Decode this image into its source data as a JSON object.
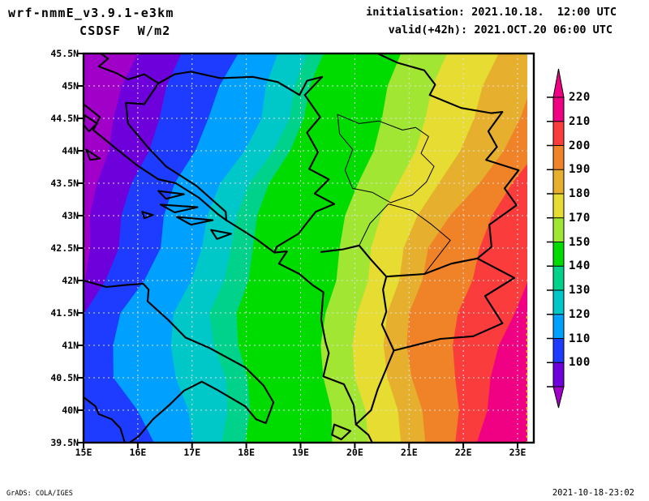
{
  "header": {
    "model_title": "wrf-nmmE_v3.9.1-e3km",
    "field_title": "CSDSF  W/m2",
    "init_line": "initialisation: 2021.10.18.  12:00 UTC",
    "valid_line": "valid(+42h): 2021.OCT.20 06:00 UTC"
  },
  "footer": {
    "grads_credit": "GrADS: COLA/IGES",
    "timestamp": "2021-10-18-23:02"
  },
  "axes": {
    "lat_tick_labels": [
      "45.5N",
      "45N",
      "44.5N",
      "44N",
      "43.5N",
      "43N",
      "42.5N",
      "42N",
      "41.5N",
      "41N",
      "40.5N",
      "40N",
      "39.5N"
    ],
    "lat_tick_values": [
      45.5,
      45,
      44.5,
      44,
      43.5,
      43,
      42.5,
      42,
      41.5,
      41,
      40.5,
      40,
      39.5
    ],
    "lon_tick_labels": [
      "15E",
      "16E",
      "17E",
      "18E",
      "19E",
      "20E",
      "21E",
      "22E",
      "23E"
    ],
    "lon_tick_values": [
      15,
      16,
      17,
      18,
      19,
      20,
      21,
      22,
      23
    ]
  },
  "colorbar": {
    "tick_labels_top_to_bottom": [
      "220",
      "210",
      "200",
      "190",
      "180",
      "170",
      "150",
      "140",
      "130",
      "120",
      "110",
      "100"
    ],
    "arrow_top_color": "#F00082",
    "arrow_bottom_color": "#A000C8"
  },
  "grid": {
    "color": "#e0e0e0",
    "lat_step": 0.5,
    "lon_step": 1
  },
  "chart_data": {
    "type": "heatmap",
    "title": "CSDSF  W/m2",
    "units": "W/m2",
    "lon_range": [
      15.0,
      23.31
    ],
    "lat_range": [
      39.5,
      45.5
    ],
    "levels": [
      100,
      110,
      120,
      130,
      140,
      150,
      170,
      180,
      190,
      200,
      210,
      220
    ],
    "palette": [
      "#A000C8",
      "#6E00DC",
      "#1E3CFF",
      "#00A0FF",
      "#00C8C8",
      "#00D28C",
      "#00DC00",
      "#A0E632",
      "#E6DC32",
      "#E6AF2D",
      "#F08228",
      "#FA3C3C",
      "#F00082"
    ],
    "palette_regions": [
      "<100",
      "100-110",
      "110-120",
      "120-130",
      "130-140",
      "140-150",
      "150-170",
      "170-180",
      "180-190",
      "190-200",
      "200-210",
      "210-220",
      ">220"
    ],
    "orientation_note": "shaded field increases from NW (<100 W/m2, purple) to SE (>220 W/m2, magenta)",
    "boundary_lats": [
      45.5,
      44.5,
      43.5,
      42.5,
      41.5,
      40.5,
      39.5
    ],
    "boundaries": [
      {
        "level": 100,
        "lons": [
          16.0,
          15.55,
          15.25,
          15.12,
          14.8,
          14.75,
          14.75
        ]
      },
      {
        "level": 110,
        "lons": [
          16.8,
          16.4,
          15.88,
          15.65,
          15.02,
          14.9,
          14.9
        ]
      },
      {
        "level": 120,
        "lons": [
          17.85,
          17.3,
          16.68,
          16.42,
          15.68,
          15.55,
          16.3
        ]
      },
      {
        "level": 130,
        "lons": [
          18.58,
          18.28,
          17.52,
          17.18,
          16.66,
          16.7,
          17.02
        ]
      },
      {
        "level": 140,
        "lons": [
          19.12,
          18.8,
          18.06,
          17.72,
          17.32,
          17.62,
          17.55
        ]
      },
      {
        "level": 150,
        "lons": [
          19.42,
          19.06,
          18.42,
          18.12,
          17.82,
          18.02,
          17.98
        ]
      },
      {
        "level": 170,
        "lons": [
          20.85,
          20.5,
          20.06,
          19.72,
          19.46,
          19.42,
          19.58
        ]
      },
      {
        "level": 180,
        "lons": [
          21.7,
          21.3,
          20.8,
          20.3,
          20.05,
          20.0,
          20.25
        ]
      },
      {
        "level": 190,
        "lons": [
          22.65,
          22.2,
          21.55,
          20.9,
          20.6,
          20.6,
          20.85
        ]
      },
      {
        "level": 200,
        "lons": [
          23.6,
          23.05,
          22.3,
          21.35,
          21.0,
          21.05,
          21.3
        ]
      },
      {
        "level": 210,
        "lons": [
          24.2,
          23.7,
          22.9,
          22.3,
          21.9,
          21.85,
          21.85
        ]
      },
      {
        "level": 220,
        "lons": [
          25.0,
          24.5,
          23.9,
          23.3,
          22.95,
          22.5,
          22.25
        ]
      }
    ],
    "no_data_strip_lon": [
      23.18,
      23.31
    ]
  },
  "map_overlay": {
    "line_color": "#000000",
    "coastlines": [
      [
        [
          15.0,
          44.72
        ],
        [
          15.3,
          44.52
        ],
        [
          15.18,
          44.32
        ],
        [
          15.62,
          44.02
        ],
        [
          15.98,
          43.78
        ],
        [
          16.38,
          43.56
        ],
        [
          16.7,
          43.5
        ],
        [
          17.12,
          43.28
        ],
        [
          17.48,
          43.02
        ],
        [
          17.63,
          42.93
        ],
        [
          17.88,
          42.8
        ],
        [
          18.2,
          42.63
        ],
        [
          18.52,
          42.43
        ],
        [
          18.75,
          42.45
        ],
        [
          18.6,
          42.26
        ],
        [
          18.98,
          42.1
        ],
        [
          19.22,
          41.93
        ],
        [
          19.42,
          41.82
        ],
        [
          19.38,
          41.4
        ],
        [
          19.46,
          41.05
        ],
        [
          19.52,
          40.88
        ],
        [
          19.42,
          40.52
        ],
        [
          19.8,
          40.4
        ],
        [
          19.98,
          40.08
        ],
        [
          20.02,
          39.78
        ],
        [
          20.25,
          39.62
        ],
        [
          20.32,
          39.5
        ]
      ],
      [
        [
          15.0,
          42.0
        ],
        [
          15.42,
          41.9
        ],
        [
          15.78,
          41.93
        ],
        [
          16.1,
          41.95
        ],
        [
          16.2,
          41.86
        ],
        [
          16.18,
          41.68
        ],
        [
          16.55,
          41.4
        ],
        [
          16.88,
          41.12
        ],
        [
          17.32,
          40.96
        ],
        [
          17.98,
          40.66
        ],
        [
          18.32,
          40.38
        ],
        [
          18.5,
          40.12
        ],
        [
          18.36,
          39.8
        ],
        [
          18.18,
          39.86
        ],
        [
          17.98,
          40.06
        ],
        [
          17.45,
          40.32
        ],
        [
          17.18,
          40.44
        ],
        [
          16.85,
          40.3
        ],
        [
          16.58,
          40.08
        ],
        [
          16.28,
          39.86
        ],
        [
          16.02,
          39.6
        ],
        [
          15.85,
          39.5
        ]
      ],
      [
        [
          15.0,
          40.2
        ],
        [
          15.22,
          40.06
        ],
        [
          15.28,
          39.94
        ],
        [
          15.52,
          39.86
        ],
        [
          15.68,
          39.72
        ],
        [
          15.76,
          39.5
        ]
      ],
      [
        [
          15.02,
          44.55
        ],
        [
          15.25,
          44.42
        ],
        [
          15.1,
          44.3
        ],
        [
          15.0,
          44.4
        ],
        [
          15.02,
          44.55
        ]
      ],
      [
        [
          15.05,
          44.02
        ],
        [
          15.3,
          43.88
        ],
        [
          15.12,
          43.86
        ],
        [
          15.05,
          44.02
        ]
      ],
      [
        [
          16.38,
          43.38
        ],
        [
          16.85,
          43.33
        ],
        [
          16.52,
          43.26
        ],
        [
          16.38,
          43.38
        ]
      ],
      [
        [
          16.42,
          43.17
        ],
        [
          17.1,
          43.13
        ],
        [
          16.68,
          43.05
        ],
        [
          16.42,
          43.17
        ]
      ],
      [
        [
          16.72,
          42.98
        ],
        [
          17.38,
          42.93
        ],
        [
          16.98,
          42.86
        ],
        [
          16.72,
          42.98
        ]
      ],
      [
        [
          16.08,
          43.06
        ],
        [
          16.28,
          43.01
        ],
        [
          16.12,
          42.96
        ],
        [
          16.08,
          43.06
        ]
      ],
      [
        [
          17.35,
          42.78
        ],
        [
          17.72,
          42.72
        ],
        [
          17.46,
          42.64
        ],
        [
          17.35,
          42.78
        ]
      ],
      [
        [
          19.62,
          39.78
        ],
        [
          19.92,
          39.68
        ],
        [
          19.75,
          39.55
        ],
        [
          19.58,
          39.62
        ],
        [
          19.62,
          39.78
        ]
      ]
    ],
    "borders": [
      [
        [
          15.32,
          45.5
        ],
        [
          15.45,
          45.42
        ],
        [
          15.28,
          45.3
        ],
        [
          15.6,
          45.2
        ],
        [
          15.82,
          45.1
        ],
        [
          16.12,
          45.18
        ],
        [
          16.38,
          45.04
        ],
        [
          16.68,
          45.18
        ],
        [
          16.98,
          45.22
        ],
        [
          17.52,
          45.12
        ],
        [
          18.12,
          45.14
        ],
        [
          18.58,
          45.06
        ],
        [
          18.98,
          44.86
        ],
        [
          19.12,
          45.08
        ],
        [
          19.4,
          45.14
        ],
        [
          19.08,
          44.86
        ]
      ],
      [
        [
          19.08,
          44.86
        ],
        [
          19.36,
          44.52
        ],
        [
          19.12,
          44.28
        ],
        [
          19.32,
          43.98
        ],
        [
          19.16,
          43.72
        ],
        [
          19.52,
          43.56
        ],
        [
          19.26,
          43.34
        ],
        [
          19.62,
          43.18
        ],
        [
          19.28,
          43.06
        ],
        [
          18.96,
          42.72
        ],
        [
          18.56,
          42.52
        ],
        [
          18.52,
          42.43
        ]
      ],
      [
        [
          16.38,
          45.04
        ],
        [
          16.12,
          44.72
        ],
        [
          15.78,
          44.74
        ],
        [
          15.82,
          44.42
        ],
        [
          16.18,
          44.06
        ],
        [
          16.52,
          43.76
        ],
        [
          17.08,
          43.46
        ],
        [
          17.62,
          43.06
        ],
        [
          17.63,
          42.93
        ]
      ],
      [
        [
          20.42,
          45.5
        ],
        [
          20.78,
          45.36
        ],
        [
          21.28,
          45.24
        ],
        [
          21.48,
          45.02
        ],
        [
          21.38,
          44.86
        ],
        [
          21.96,
          44.66
        ],
        [
          22.52,
          44.58
        ],
        [
          22.72,
          44.6
        ],
        [
          22.46,
          44.3
        ],
        [
          22.62,
          44.06
        ],
        [
          22.42,
          43.86
        ],
        [
          23.02,
          43.7
        ],
        [
          22.76,
          43.42
        ],
        [
          22.98,
          43.16
        ],
        [
          22.48,
          42.86
        ],
        [
          22.52,
          42.52
        ],
        [
          22.26,
          42.34
        ]
      ],
      [
        [
          19.38,
          42.44
        ],
        [
          19.78,
          42.48
        ],
        [
          20.08,
          42.54
        ],
        [
          20.3,
          42.32
        ],
        [
          20.58,
          42.06
        ],
        [
          20.52,
          41.86
        ],
        [
          20.58,
          41.52
        ],
        [
          20.5,
          41.32
        ],
        [
          20.72,
          40.92
        ]
      ],
      [
        [
          20.58,
          42.06
        ],
        [
          21.28,
          42.1
        ],
        [
          21.78,
          42.26
        ],
        [
          22.26,
          42.34
        ]
      ],
      [
        [
          20.72,
          40.92
        ],
        [
          21.58,
          41.1
        ],
        [
          22.18,
          41.14
        ],
        [
          22.72,
          41.34
        ]
      ],
      [
        [
          22.72,
          41.34
        ],
        [
          22.4,
          41.76
        ],
        [
          22.94,
          42.04
        ],
        [
          22.26,
          42.34
        ]
      ],
      [
        [
          20.02,
          39.78
        ],
        [
          20.3,
          40.0
        ],
        [
          20.42,
          40.32
        ],
        [
          20.72,
          40.92
        ]
      ]
    ],
    "thin_borders": [
      [
        [
          19.68,
          44.56
        ],
        [
          20.08,
          44.42
        ],
        [
          20.44,
          44.46
        ],
        [
          20.88,
          44.32
        ],
        [
          21.12,
          44.36
        ],
        [
          21.36,
          44.22
        ],
        [
          21.22,
          43.96
        ],
        [
          21.46,
          43.76
        ],
        [
          21.32,
          43.52
        ],
        [
          21.06,
          43.32
        ],
        [
          20.66,
          43.2
        ],
        [
          20.32,
          43.36
        ],
        [
          19.96,
          43.42
        ],
        [
          19.82,
          43.7
        ],
        [
          19.96,
          44.02
        ],
        [
          19.72,
          44.26
        ],
        [
          19.68,
          44.56
        ]
      ],
      [
        [
          20.08,
          42.54
        ],
        [
          20.28,
          42.88
        ],
        [
          20.62,
          43.18
        ],
        [
          21.06,
          43.08
        ],
        [
          21.42,
          42.86
        ],
        [
          21.76,
          42.62
        ],
        [
          21.28,
          42.1
        ]
      ]
    ]
  }
}
